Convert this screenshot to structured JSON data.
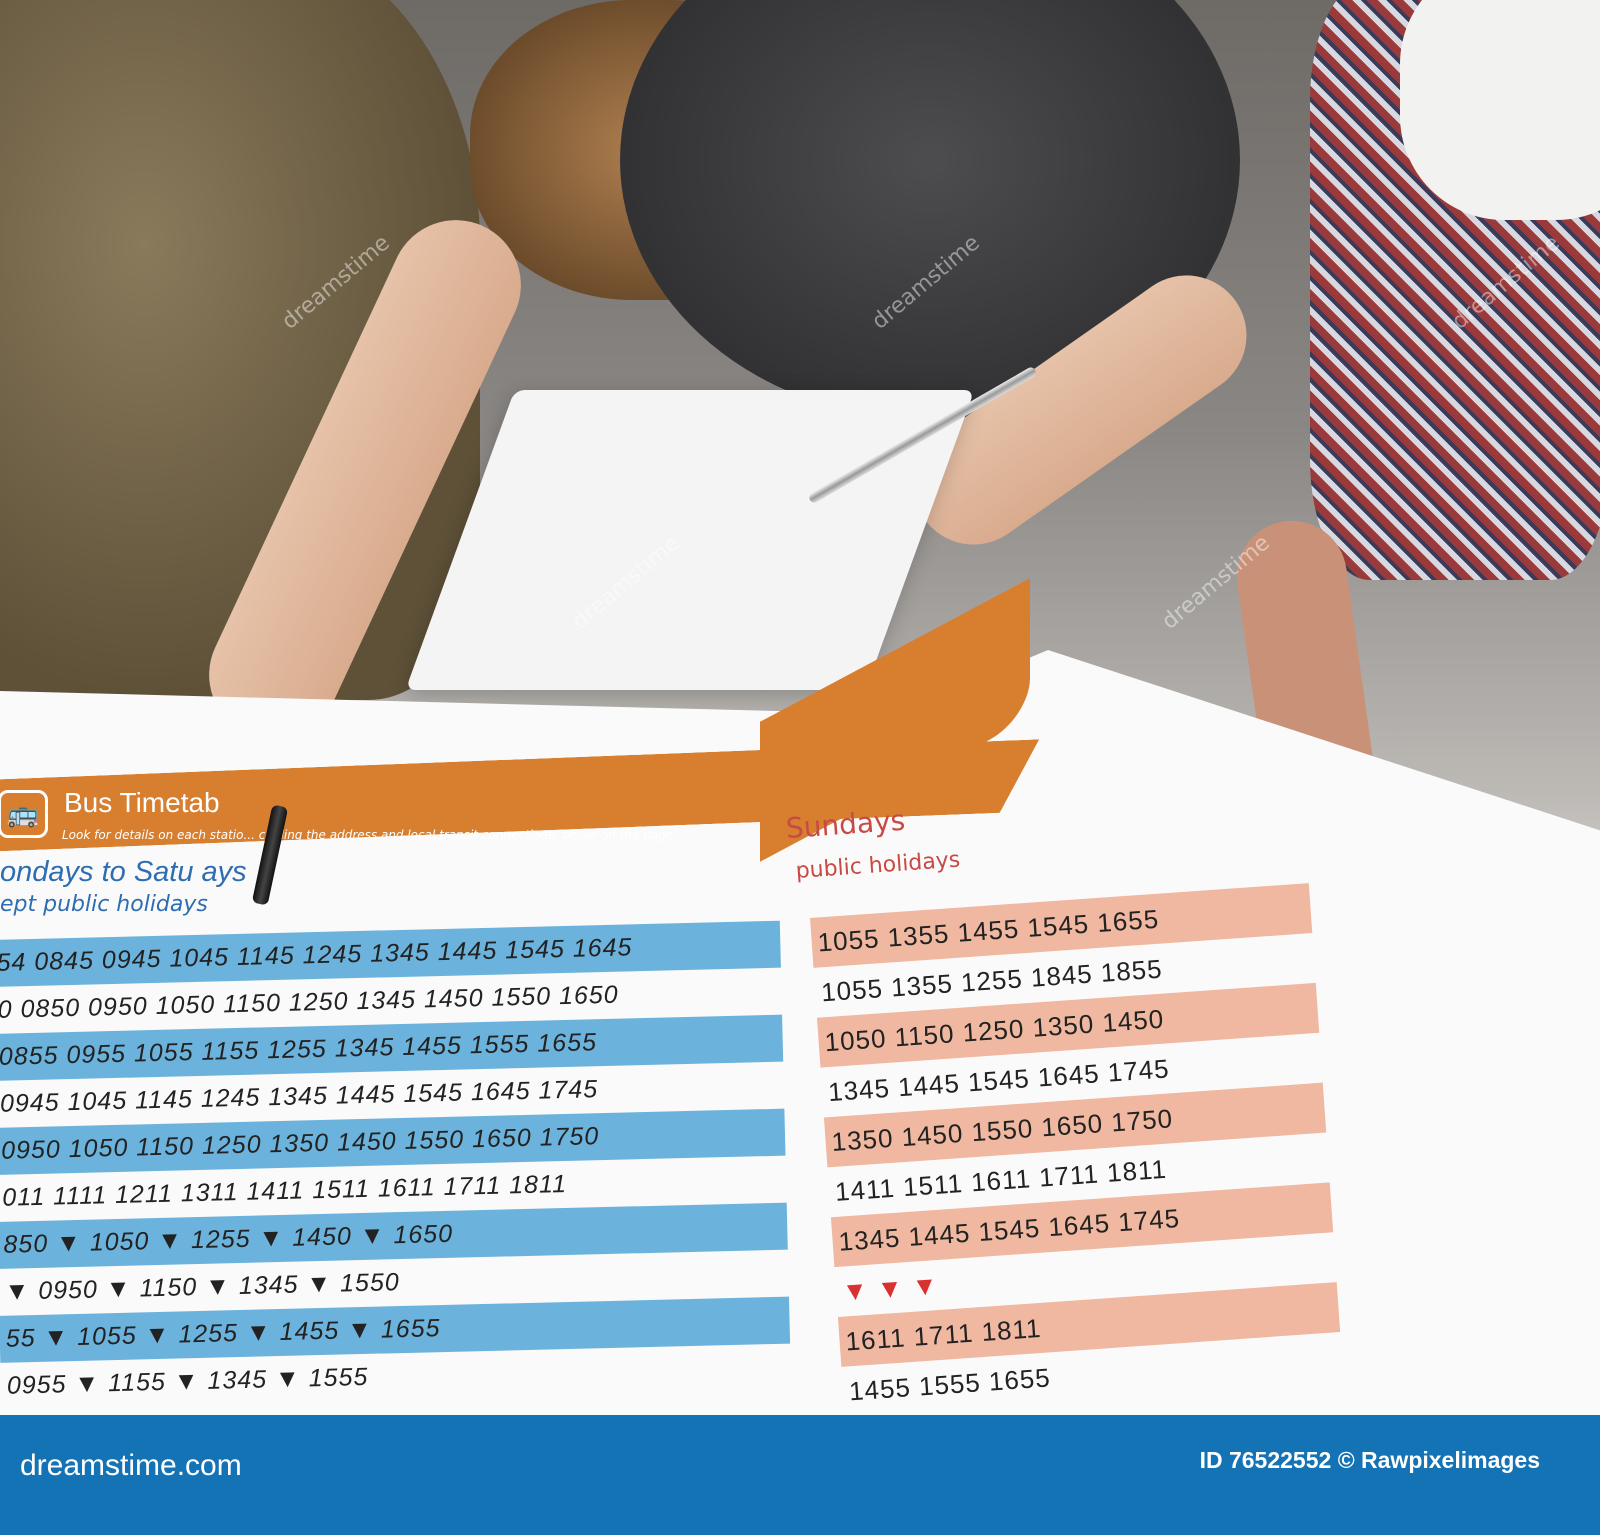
{
  "timetable": {
    "title": "Bus Timetab",
    "subtitle": "Look for details on each statio... cluding the address and local transit connections, below on the page.",
    "left_heading": "ondays to Satu  ays",
    "left_subheading": "ept public holidays",
    "right_heading": "Sundays",
    "right_subheading": "public holidays",
    "left_rows": [
      "54  0845  0945  1045  1145  1245  1345  1445  1545  1645",
      "0  0850  0950  1050  1150  1250  1345  1450  1550  1650",
      " 0855  0955  1055  1155  1255  1345  1455  1555  1655",
      "0945  1045  1145  1245  1345  1445  1545  1645  1745",
      "0950  1050  1150  1250  1350  1450  1550  1650  1750",
      "011  1111  1211  1311  1411  1511  1611  1711  1811",
      "850   ▼   1050   ▼   1255   ▼   1450   ▼   1650",
      "▼   0950   ▼   1150   ▼   1345   ▼   1550",
      "55   ▼   1055   ▼   1255   ▼   1455   ▼   1655",
      "  0955   ▼   1155   ▼   1345   ▼   1555"
    ],
    "right_rows": [
      "1055 1355 1455 1545 1655",
      "1055 1355 1255 1845 1855",
      "1050 1150 1250 1350 1450",
      "1345 1445 1545 1645 1745",
      "1350 1450 1550 1650 1750",
      "1411 1511 1611 1711 1811",
      "1345 1445 1545 1645 1745",
      "▼      ▼      ▼",
      "1611 1711 1811",
      "1455 1555 1655"
    ]
  },
  "watermark": "dreamstime",
  "footer": {
    "logo": "dreamstime.com",
    "credit": "ID 76522552 © Rawpixelimages"
  },
  "colors": {
    "orange": "#d77f2e",
    "blue_row": "#6bb3dc",
    "salmon_row": "#f0b8a0",
    "footer": "#1473b5"
  }
}
